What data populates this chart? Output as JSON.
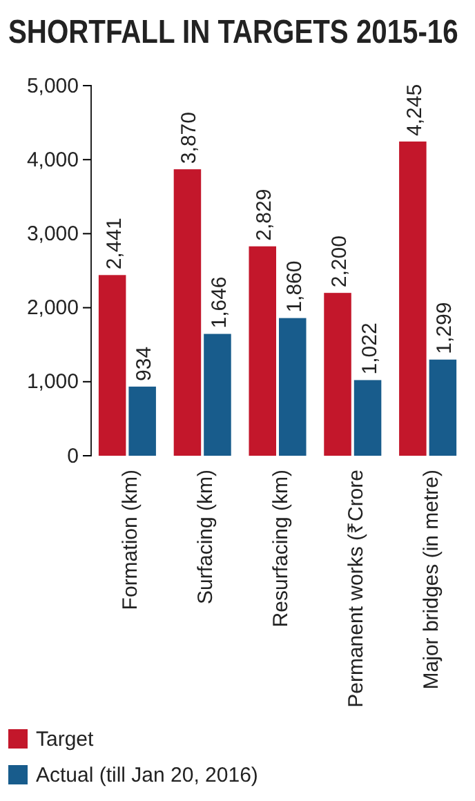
{
  "chart_data": {
    "type": "bar",
    "title": "SHORTFALL IN TARGETS 2015-16",
    "categories": [
      "Formation (km)",
      "Surfacing (km)",
      "Resurfacing (km)",
      "Permanent works (₹Crore",
      "Major bridges (in metre)"
    ],
    "series": [
      {
        "name": "Target",
        "color": "#c3172b",
        "values": [
          2441,
          3870,
          2829,
          2200,
          4245
        ],
        "value_labels": [
          "2,441",
          "3,870",
          "2,829",
          "2,200",
          "4,245"
        ]
      },
      {
        "name": "Actual (till Jan 20, 2016)",
        "color": "#185c8c",
        "values": [
          934,
          1646,
          1860,
          1022,
          1299
        ],
        "value_labels": [
          "934",
          "1,646",
          "1,860",
          "1,022",
          "1,299"
        ]
      }
    ],
    "ylim": [
      0,
      5000
    ],
    "yticks": [
      {
        "value": 0,
        "label": "0"
      },
      {
        "value": 1000,
        "label": "1,000"
      },
      {
        "value": 2000,
        "label": "2,000"
      },
      {
        "value": 3000,
        "label": "3,000"
      },
      {
        "value": 4000,
        "label": "4,000"
      },
      {
        "value": 5000,
        "label": "5,000"
      }
    ],
    "grid": false,
    "legend": "bottom left"
  }
}
